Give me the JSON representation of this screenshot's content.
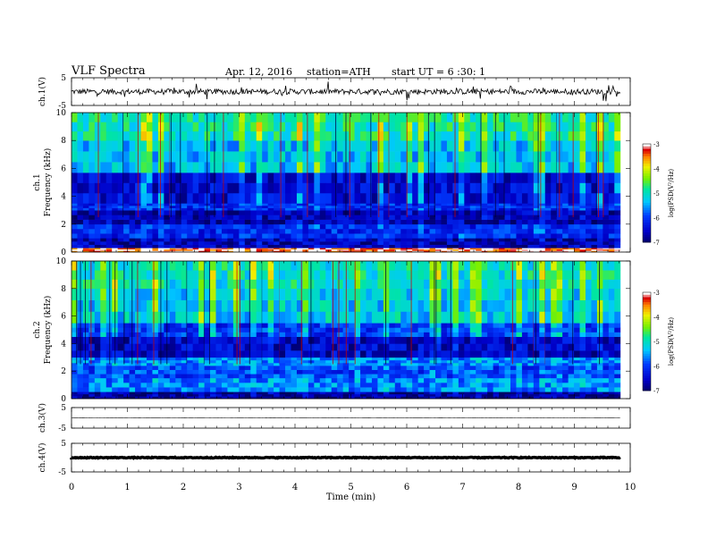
{
  "header": {
    "title": "VLF  Spectra",
    "date": "Apr. 12, 2016",
    "station": "station=ATH",
    "start": "start  UT =   6  :30: 1"
  },
  "chart_data": [
    {
      "type": "line",
      "panel": "ch1",
      "ylabel": "ch.1(V)",
      "ylim": [
        -5,
        5
      ],
      "yticks": [
        "5",
        "-5"
      ],
      "baseline": 0,
      "amplitude": 1
    },
    {
      "type": "heatmap",
      "panel": "spec1",
      "ylabel": [
        "ch.1",
        "Frequency  (kHz)"
      ],
      "ylim": [
        0,
        10
      ],
      "yticks": [
        "0",
        "2",
        "4",
        "6",
        "8",
        "10"
      ],
      "colorbar": {
        "label": "log(PSD(V²/Hz)",
        "range": [
          -7,
          -3
        ],
        "ticks": [
          "-3",
          "-4",
          "-5",
          "-6",
          "-7"
        ]
      },
      "bands": [
        {
          "from": 0,
          "to": 0.3,
          "level": -3.2
        },
        {
          "from": 0.3,
          "to": 1.0,
          "level": -6.6
        },
        {
          "from": 1.0,
          "to": 2.0,
          "level": -6.1
        },
        {
          "from": 2.0,
          "to": 3.0,
          "level": -6.6
        },
        {
          "from": 3.0,
          "to": 3.5,
          "level": -6.1
        },
        {
          "from": 3.5,
          "to": 5.7,
          "level": -6.4
        },
        {
          "from": 5.7,
          "to": 8.0,
          "level": -5.3
        },
        {
          "from": 8.0,
          "to": 10.0,
          "level": -4.9
        }
      ]
    },
    {
      "type": "heatmap",
      "panel": "spec2",
      "ylabel": [
        "ch.2",
        "Frequency  (kHz)"
      ],
      "ylim": [
        0,
        10
      ],
      "yticks": [
        "0",
        "2",
        "4",
        "6",
        "8",
        "10"
      ],
      "colorbar": {
        "label": "log(PSD(V²/Hz)",
        "range": [
          -7,
          -3
        ],
        "ticks": [
          "-3",
          "-4",
          "-5",
          "-6",
          "-7"
        ]
      },
      "bands": [
        {
          "from": 0,
          "to": 0.5,
          "level": -6.8
        },
        {
          "from": 0.5,
          "to": 1.5,
          "level": -5.6
        },
        {
          "from": 1.5,
          "to": 2.4,
          "level": -5.9
        },
        {
          "from": 2.4,
          "to": 3.0,
          "level": -5.6
        },
        {
          "from": 3.0,
          "to": 4.5,
          "level": -6.5
        },
        {
          "from": 4.5,
          "to": 5.5,
          "level": -6.0
        },
        {
          "from": 5.5,
          "to": 8.0,
          "level": -5.2
        },
        {
          "from": 8.0,
          "to": 10.0,
          "level": -5.0
        }
      ]
    },
    {
      "type": "line",
      "panel": "ch3",
      "ylabel": "ch.3(V)",
      "ylim": [
        -5,
        5
      ],
      "yticks": [
        "5",
        "-5"
      ],
      "baseline": 0,
      "amplitude": 0.05
    },
    {
      "type": "line",
      "panel": "ch4",
      "ylabel": "ch.4(V)",
      "ylim": [
        -5,
        5
      ],
      "yticks": [
        "5",
        "-5"
      ],
      "baseline": 0,
      "amplitude": 0.15
    }
  ],
  "xaxis": {
    "label": "Time  (min)",
    "range": [
      0,
      10
    ],
    "ticks": [
      "0",
      "1",
      "2",
      "3",
      "4",
      "5",
      "6",
      "7",
      "8",
      "9",
      "10"
    ],
    "data_end": 9.82
  }
}
